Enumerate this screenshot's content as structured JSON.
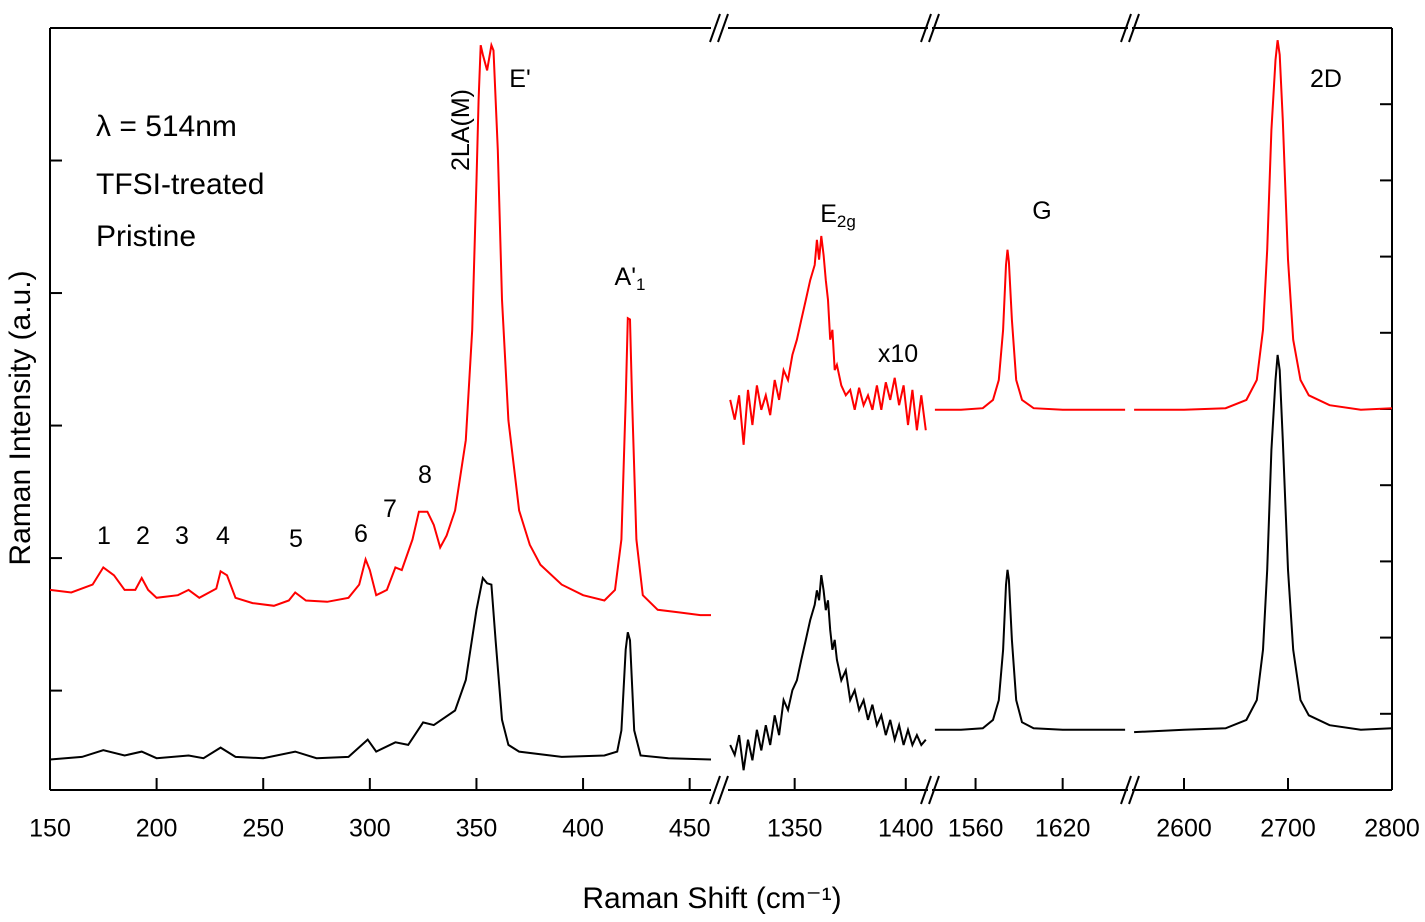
{
  "chart_data": [
    {
      "type": "line",
      "xlabel": "Raman Shift (cm⁻¹)",
      "ylabel": "Raman Intensity (a.u.)",
      "annotations": [
        {
          "text": "λ = 514nm",
          "color": "#1f9a1f"
        },
        {
          "text": "1"
        },
        {
          "text": "2"
        },
        {
          "text": "3"
        },
        {
          "text": "4"
        },
        {
          "text": "5"
        },
        {
          "text": "6"
        },
        {
          "text": "7"
        },
        {
          "text": "8"
        },
        {
          "text": "2LA(M)"
        },
        {
          "text": "E'"
        },
        {
          "text": "A'",
          "sub": "1"
        },
        {
          "text": "E",
          "sub": "2g"
        },
        {
          "text": "G"
        },
        {
          "text": "x10"
        },
        {
          "text": "2D"
        }
      ],
      "ylim": [
        0.25,
        6
      ],
      "yticks": [
        1,
        2,
        3,
        4,
        5
      ],
      "y2lim": [
        0,
        10
      ],
      "y2ticks": [
        1,
        2,
        3,
        4,
        5,
        6,
        7,
        8,
        9
      ],
      "xlim": [
        150,
        460
      ],
      "xticks": [
        150,
        200,
        250,
        300,
        350,
        400,
        450
      ],
      "series": [
        {
          "name": "TFSI-treated",
          "color": "#ff0000",
          "x": [
            150,
            160,
            170,
            175,
            180,
            185,
            190,
            193,
            196,
            200,
            210,
            215,
            220,
            228,
            230,
            233,
            237,
            245,
            255,
            262,
            265,
            270,
            280,
            290,
            295,
            298,
            300,
            303,
            308,
            312,
            315,
            320,
            323,
            327,
            330,
            333,
            336,
            340,
            345,
            348,
            350,
            351,
            352,
            353,
            355,
            357,
            358,
            360,
            362,
            365,
            370,
            375,
            380,
            390,
            400,
            410,
            415,
            418,
            420,
            421,
            422,
            423,
            425,
            428,
            435,
            445,
            455,
            460
          ],
          "values": [
            1.76,
            1.74,
            1.8,
            1.93,
            1.87,
            1.76,
            1.76,
            1.85,
            1.76,
            1.7,
            1.72,
            1.76,
            1.7,
            1.77,
            1.9,
            1.87,
            1.7,
            1.66,
            1.64,
            1.68,
            1.74,
            1.68,
            1.67,
            1.7,
            1.8,
            1.99,
            1.91,
            1.72,
            1.76,
            1.93,
            1.91,
            2.14,
            2.35,
            2.35,
            2.25,
            2.08,
            2.17,
            2.36,
            2.89,
            3.72,
            4.85,
            5.46,
            5.87,
            5.8,
            5.68,
            5.87,
            5.83,
            5.08,
            3.95,
            3.04,
            2.36,
            2.1,
            1.95,
            1.8,
            1.72,
            1.68,
            1.76,
            2.14,
            3.19,
            3.81,
            3.8,
            3.19,
            2.14,
            1.72,
            1.61,
            1.59,
            1.57,
            1.57
          ]
        },
        {
          "name": "Pristine",
          "color": "#000000",
          "x": [
            150,
            165,
            175,
            185,
            193,
            200,
            215,
            222,
            230,
            237,
            250,
            265,
            275,
            290,
            299,
            303,
            312,
            318,
            325,
            330,
            340,
            345,
            350,
            353,
            355,
            357,
            359,
            362,
            365,
            370,
            390,
            410,
            416,
            418,
            420,
            421,
            422,
            424,
            427,
            440,
            460
          ],
          "values": [
            0.48,
            0.5,
            0.55,
            0.51,
            0.54,
            0.49,
            0.51,
            0.49,
            0.57,
            0.5,
            0.49,
            0.54,
            0.49,
            0.5,
            0.63,
            0.54,
            0.61,
            0.59,
            0.76,
            0.74,
            0.85,
            1.08,
            1.61,
            1.85,
            1.81,
            1.8,
            1.38,
            0.78,
            0.59,
            0.54,
            0.5,
            0.51,
            0.54,
            0.7,
            1.31,
            1.44,
            1.38,
            0.7,
            0.51,
            0.49,
            0.48
          ]
        }
      ]
    },
    {
      "type": "line",
      "xlim": [
        1320,
        1410
      ],
      "xticks": [
        1350,
        1400
      ],
      "series": [
        {
          "color": "#ff0000",
          "axis": "y2",
          "x": [
            1321,
            1323,
            1325,
            1327,
            1329,
            1331,
            1333,
            1335,
            1337,
            1339,
            1341,
            1343,
            1345,
            1347,
            1349,
            1351,
            1353,
            1355,
            1357,
            1359,
            1360,
            1361,
            1362,
            1363,
            1364,
            1365,
            1366,
            1367,
            1368,
            1369,
            1371,
            1373,
            1375,
            1377,
            1379,
            1381,
            1383,
            1385,
            1387,
            1389,
            1391,
            1393,
            1395,
            1397,
            1399,
            1401,
            1403,
            1405,
            1407,
            1409
          ],
          "values": [
            5.12,
            4.86,
            5.18,
            4.53,
            5.25,
            4.79,
            5.31,
            4.99,
            5.18,
            4.92,
            5.38,
            5.12,
            5.51,
            5.38,
            5.71,
            5.91,
            6.17,
            6.43,
            6.69,
            6.89,
            7.22,
            6.96,
            7.27,
            7.02,
            6.69,
            6.43,
            5.91,
            6.04,
            5.51,
            5.58,
            5.31,
            5.18,
            5.25,
            4.99,
            5.28,
            5.05,
            5.18,
            4.99,
            5.31,
            4.99,
            5.35,
            5.12,
            5.41,
            5.05,
            5.31,
            4.79,
            5.25,
            4.72,
            5.18,
            4.72
          ]
        },
        {
          "color": "#000000",
          "axis": "y2",
          "x": [
            1321,
            1323,
            1325,
            1327,
            1329,
            1331,
            1333,
            1335,
            1337,
            1339,
            1341,
            1343,
            1345,
            1347,
            1349,
            1351,
            1353,
            1355,
            1357,
            1359,
            1360,
            1361,
            1362,
            1363,
            1364,
            1365,
            1366,
            1367,
            1368,
            1369,
            1371,
            1373,
            1375,
            1377,
            1379,
            1381,
            1383,
            1385,
            1387,
            1389,
            1391,
            1393,
            1395,
            1397,
            1399,
            1401,
            1403,
            1405,
            1407,
            1409
          ],
          "values": [
            0.59,
            0.46,
            0.72,
            0.26,
            0.66,
            0.39,
            0.79,
            0.52,
            0.85,
            0.59,
            0.98,
            0.72,
            1.18,
            1.05,
            1.31,
            1.44,
            1.71,
            1.97,
            2.23,
            2.43,
            2.62,
            2.49,
            2.82,
            2.62,
            2.36,
            2.49,
            2.1,
            1.84,
            1.97,
            1.71,
            1.44,
            1.57,
            1.18,
            1.31,
            1.05,
            1.18,
            0.92,
            1.12,
            0.85,
            0.98,
            0.72,
            0.92,
            0.66,
            0.85,
            0.59,
            0.79,
            0.59,
            0.72,
            0.59,
            0.66
          ]
        }
      ]
    },
    {
      "type": "line",
      "xlim": [
        1530,
        1665
      ],
      "xticks": [
        1560,
        1620
      ],
      "series": [
        {
          "color": "#ff0000",
          "axis": "y2",
          "x": [
            1532,
            1550,
            1565,
            1572,
            1576,
            1579,
            1581,
            1582,
            1583,
            1585,
            1588,
            1592,
            1600,
            1620,
            1663
          ],
          "values": [
            4.99,
            4.99,
            5.01,
            5.12,
            5.38,
            6.04,
            6.89,
            7.09,
            6.93,
            6.17,
            5.38,
            5.12,
            5.01,
            4.99,
            4.99
          ]
        },
        {
          "color": "#000000",
          "axis": "y2",
          "x": [
            1532,
            1550,
            1565,
            1572,
            1576,
            1579,
            1581,
            1582,
            1583,
            1585,
            1588,
            1592,
            1600,
            1620,
            1663
          ],
          "values": [
            0.79,
            0.79,
            0.81,
            0.92,
            1.18,
            1.84,
            2.69,
            2.89,
            2.76,
            1.97,
            1.18,
            0.89,
            0.81,
            0.79,
            0.79
          ]
        }
      ]
    },
    {
      "type": "line",
      "xlim": [
        2550,
        2800
      ],
      "xticks": [
        2600,
        2700,
        2800
      ],
      "series": [
        {
          "color": "#ff0000",
          "axis": "y2",
          "x": [
            2552,
            2600,
            2640,
            2660,
            2670,
            2676,
            2680,
            2684,
            2688,
            2690,
            2692,
            2695,
            2700,
            2705,
            2712,
            2720,
            2740,
            2770,
            2800
          ],
          "values": [
            4.99,
            4.99,
            5.01,
            5.12,
            5.38,
            6.04,
            7.09,
            8.66,
            9.58,
            9.84,
            9.65,
            8.79,
            6.96,
            5.91,
            5.38,
            5.18,
            5.05,
            4.99,
            5.01
          ]
        },
        {
          "color": "#000000",
          "axis": "y2",
          "x": [
            2552,
            2600,
            2640,
            2660,
            2670,
            2676,
            2680,
            2684,
            2688,
            2690,
            2692,
            2695,
            2700,
            2705,
            2712,
            2720,
            2740,
            2770,
            2800
          ],
          "values": [
            0.76,
            0.79,
            0.81,
            0.92,
            1.18,
            1.84,
            2.89,
            4.46,
            5.38,
            5.71,
            5.51,
            4.59,
            2.89,
            1.84,
            1.18,
            0.98,
            0.85,
            0.79,
            0.81
          ]
        }
      ]
    }
  ]
}
